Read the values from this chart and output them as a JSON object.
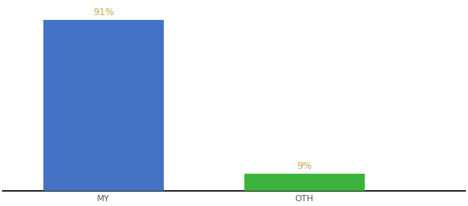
{
  "categories": [
    "MY",
    "OTH"
  ],
  "values": [
    91,
    9
  ],
  "bar_colors": [
    "#4472c4",
    "#3cb43c"
  ],
  "label_color": "#c8a84b",
  "ylim": [
    0,
    100
  ],
  "background_color": "#ffffff",
  "bar_width": 0.6,
  "x_positions": [
    0,
    1
  ],
  "xlim": [
    -0.5,
    1.8
  ],
  "label_fontsize": 10,
  "tick_fontsize": 9,
  "tick_color": "#555555",
  "bottom_spine_color": "#111111",
  "bottom_spine_lw": 1.5
}
